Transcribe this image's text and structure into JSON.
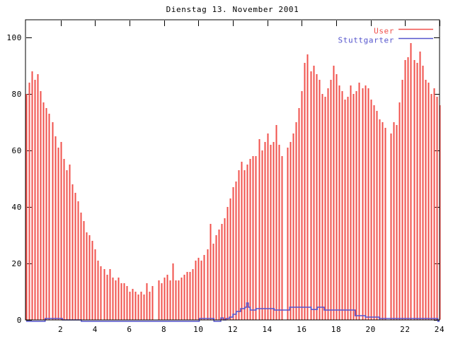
{
  "title": "Dienstag 13. November 2001",
  "colors": {
    "background": "#ffffff",
    "axis": "#000000",
    "user_red": "#f0504b",
    "stuttgarter_blue": "#5555cd"
  },
  "chart_data": {
    "type": "bar",
    "title": "Dienstag 13. November 2001",
    "xlabel": "",
    "ylabel": "",
    "xlim": [
      0,
      24
    ],
    "ylim": [
      0,
      106
    ],
    "x_ticks": [
      2,
      4,
      6,
      8,
      10,
      12,
      14,
      16,
      18,
      20,
      22,
      24
    ],
    "y_ticks": [
      0,
      20,
      40,
      60,
      80,
      100
    ],
    "grid": false,
    "legend_position": "top-right-inside",
    "series": [
      {
        "name": "User",
        "type": "impulses",
        "color": "#f0504b",
        "x_start": 0,
        "x_step": 0.16667,
        "values": [
          80,
          84,
          88,
          85,
          87,
          81,
          77,
          75,
          73,
          70,
          65,
          61,
          63,
          57,
          53,
          55,
          48,
          45,
          42,
          38,
          35,
          31,
          30,
          28,
          25,
          21,
          19,
          18,
          16,
          18,
          15,
          14,
          15,
          13,
          13,
          12,
          10,
          11,
          10,
          9,
          10,
          9,
          13,
          10,
          12,
          0,
          14,
          13,
          15,
          16,
          14,
          20,
          14,
          14,
          15,
          16,
          17,
          17,
          18,
          21,
          22,
          21,
          23,
          25,
          34,
          27,
          30,
          32,
          34,
          36,
          40,
          43,
          47,
          49,
          53,
          56,
          53,
          55,
          57,
          58,
          58,
          64,
          60,
          63,
          66,
          62,
          63,
          69,
          62,
          58,
          0,
          61,
          63,
          66,
          70,
          75,
          81,
          91,
          94,
          88,
          90,
          87,
          85,
          80,
          79,
          82,
          85,
          90,
          87,
          83,
          81,
          78,
          79,
          83,
          80,
          81,
          84,
          82,
          83,
          82,
          78,
          76,
          74,
          71,
          70,
          68,
          0,
          66,
          70,
          69,
          77,
          85,
          92,
          93,
          98,
          92,
          91,
          95,
          90,
          85,
          84,
          80,
          82,
          79,
          76
        ]
      },
      {
        "name": "Stuttgarter",
        "type": "step-line",
        "color": "#5555cd",
        "points": [
          [
            0,
            0
          ],
          [
            1.1,
            1
          ],
          [
            2.1,
            0.5
          ],
          [
            3.2,
            0
          ],
          [
            10.05,
            1
          ],
          [
            10.9,
            0
          ],
          [
            11.3,
            1.2
          ],
          [
            11.45,
            0.5
          ],
          [
            11.6,
            1
          ],
          [
            11.8,
            1.5
          ],
          [
            12.0,
            2.5
          ],
          [
            12.2,
            3.5
          ],
          [
            12.45,
            4.5
          ],
          [
            12.7,
            5
          ],
          [
            12.8,
            6.5
          ],
          [
            12.9,
            5
          ],
          [
            13.0,
            4
          ],
          [
            13.35,
            4.5
          ],
          [
            14.4,
            4
          ],
          [
            15.3,
            5
          ],
          [
            16.55,
            4.2
          ],
          [
            16.9,
            5
          ],
          [
            17.3,
            4
          ],
          [
            19.1,
            2
          ],
          [
            19.7,
            1.5
          ],
          [
            20.5,
            1
          ],
          [
            23.9,
            0
          ],
          [
            24,
            0
          ]
        ]
      }
    ]
  }
}
